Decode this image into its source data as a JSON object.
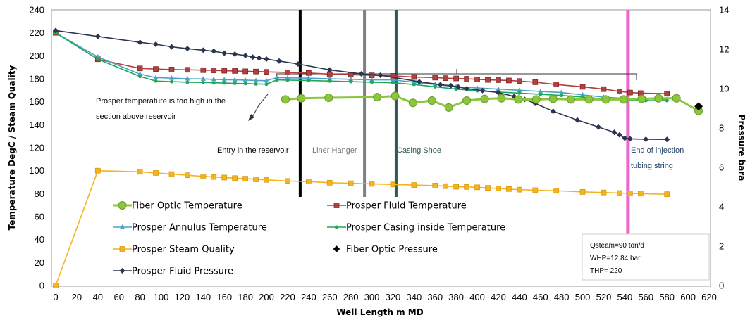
{
  "chart_data": {
    "type": "line",
    "xlabel": "Well Length m MD",
    "ylabel": "Temperature DegC / Steam Quality",
    "y2label": "Pressure bara",
    "xlim": [
      0,
      620
    ],
    "ylim": [
      0,
      240
    ],
    "y2lim": [
      0,
      14
    ],
    "x_ticks": [
      0,
      20,
      40,
      60,
      80,
      100,
      120,
      140,
      160,
      180,
      200,
      220,
      240,
      260,
      280,
      300,
      320,
      340,
      360,
      380,
      400,
      420,
      440,
      460,
      480,
      500,
      520,
      540,
      560,
      580,
      600,
      620
    ],
    "y_ticks": [
      0,
      20,
      40,
      60,
      80,
      100,
      120,
      140,
      160,
      180,
      200,
      220,
      240
    ],
    "y2_ticks": [
      0,
      2,
      4,
      6,
      8,
      10,
      12,
      14
    ],
    "grid": false,
    "legend_position": "bottom-left",
    "series": [
      {
        "name": "Fiber Optic Temperature",
        "axis": "left",
        "color": "#8cc63f",
        "marker": "circle",
        "x": [
          218,
          233,
          259,
          305,
          322,
          339,
          357,
          373,
          390,
          407,
          423,
          439,
          456,
          472,
          489,
          506,
          522,
          539,
          556,
          572,
          589,
          610
        ],
        "y": [
          162,
          163,
          163.5,
          164,
          165,
          159,
          161,
          155,
          161,
          162.5,
          163,
          162,
          162,
          162.5,
          162,
          162,
          162,
          162,
          162.5,
          163,
          163,
          152
        ]
      },
      {
        "name": "Prosper Fluid Temperature",
        "axis": "left",
        "color": "#b24040",
        "marker": "square",
        "x": [
          0,
          40,
          80,
          95,
          110,
          125,
          140,
          150,
          160,
          170,
          180,
          190,
          200,
          220,
          240,
          260,
          280,
          300,
          320,
          340,
          360,
          370,
          380,
          390,
          400,
          410,
          420,
          430,
          440,
          455,
          475,
          500,
          520,
          535,
          545,
          555,
          580
        ],
        "y": [
          220,
          197,
          189,
          188.5,
          188,
          187.8,
          187.5,
          187.3,
          187,
          186.8,
          186.5,
          186.3,
          186,
          185.5,
          185,
          184,
          183.5,
          183,
          182.5,
          181.5,
          181,
          180.5,
          180.3,
          180,
          179.5,
          179,
          178.8,
          178.5,
          178,
          177,
          175,
          173,
          171,
          169,
          168,
          167.5,
          167
        ]
      },
      {
        "name": "Prosper Annulus Temperature",
        "axis": "left",
        "color": "#4aa3c8",
        "marker": "triangle",
        "x": [
          0,
          40,
          80,
          95,
          110,
          125,
          140,
          150,
          160,
          170,
          180,
          190,
          200,
          210,
          220,
          240,
          260,
          280,
          300,
          320,
          340,
          360,
          380,
          400,
          420,
          440,
          460,
          480,
          500,
          520,
          540,
          560,
          580
        ],
        "y": [
          220,
          199,
          184,
          181,
          180.5,
          180,
          179.8,
          179.5,
          179.2,
          179,
          178.8,
          178.5,
          178.3,
          181,
          180.8,
          180.5,
          180,
          179.5,
          179,
          179,
          177,
          175,
          173,
          172,
          171,
          170,
          169,
          168,
          166,
          164,
          163,
          162.5,
          162
        ]
      },
      {
        "name": "Prosper Casing inside Temperature",
        "axis": "left",
        "color": "#1fa85a",
        "marker": "dot",
        "x": [
          0,
          40,
          80,
          95,
          110,
          125,
          140,
          150,
          160,
          170,
          180,
          190,
          200,
          210,
          220,
          240,
          260,
          280,
          300,
          320,
          340,
          360,
          380,
          400,
          420,
          440,
          460,
          480,
          500,
          520,
          540,
          560,
          580
        ],
        "y": [
          220,
          197,
          182,
          178,
          177.5,
          177,
          176.8,
          176.5,
          176.3,
          176,
          175.8,
          175.5,
          175.3,
          179,
          178.8,
          178.5,
          178,
          177.5,
          177,
          176.5,
          175,
          173,
          171,
          169.5,
          168.5,
          167.5,
          166.5,
          165.5,
          164,
          162.5,
          161.5,
          161,
          161
        ]
      },
      {
        "name": "Prosper Steam Quality",
        "axis": "left",
        "color": "#f5b41e",
        "marker": "square",
        "x": [
          0,
          40,
          80,
          95,
          110,
          125,
          140,
          150,
          160,
          170,
          180,
          190,
          200,
          220,
          240,
          260,
          280,
          300,
          320,
          340,
          360,
          370,
          380,
          390,
          400,
          410,
          420,
          430,
          440,
          455,
          475,
          500,
          520,
          535,
          545,
          555,
          580
        ],
        "y": [
          0,
          100,
          99,
          98,
          97,
          96,
          95,
          94.5,
          94,
          93.5,
          93,
          92.5,
          92,
          91,
          90.5,
          89.5,
          89,
          88.5,
          88,
          87.5,
          87,
          86.5,
          86,
          85.8,
          85.5,
          85,
          84.5,
          84,
          83.5,
          83,
          82.5,
          81.5,
          81,
          80.5,
          80.2,
          80,
          79.5
        ]
      },
      {
        "name": "Fiber Optic Pressure",
        "axis": "right",
        "color": "#000000",
        "marker": "diamond",
        "x": [
          610
        ],
        "y": [
          9.1
        ]
      },
      {
        "name": "Prosper Fluid Pressure",
        "axis": "right",
        "color": "#2b3550",
        "marker": "diamond",
        "x": [
          0,
          40,
          80,
          95,
          110,
          125,
          140,
          150,
          160,
          170,
          180,
          187,
          193,
          200,
          212,
          230,
          260,
          290,
          308,
          345,
          365,
          375,
          382,
          390,
          405,
          420,
          435,
          445,
          455,
          472,
          495,
          515,
          530,
          535,
          540,
          545,
          560,
          580
        ],
        "y": [
          12.95,
          12.65,
          12.35,
          12.25,
          12.12,
          12.03,
          11.95,
          11.9,
          11.8,
          11.75,
          11.68,
          11.6,
          11.55,
          11.5,
          11.4,
          11.25,
          10.95,
          10.75,
          10.68,
          10.35,
          10.2,
          10.15,
          10.08,
          10.0,
          9.9,
          9.8,
          9.6,
          9.45,
          9.25,
          8.85,
          8.4,
          8.05,
          7.78,
          7.65,
          7.48,
          7.45,
          7.43,
          7.42
        ]
      }
    ],
    "vertical_markers": [
      {
        "x": 232,
        "color": "#000000",
        "label": "Entry in the reservoir"
      },
      {
        "x": 293,
        "color": "#808080",
        "label": "Liner Hanger"
      },
      {
        "x": 323,
        "color": "#2e5a55",
        "label": "Casing Shoe"
      },
      {
        "x": 543,
        "color": "#ee66cc",
        "label": "End of injection tubing string"
      }
    ],
    "annotations": {
      "prosper_note_line1": "Prosper temperature is too high in the",
      "prosper_note_line2": "section above reservoir",
      "end_line1": "End of injection",
      "end_line2": "tubing string"
    },
    "info_box": {
      "line1": "Qsteam=90 ton/d",
      "line2": "WHP=12.84 bar",
      "line3": "THP= 220"
    }
  }
}
